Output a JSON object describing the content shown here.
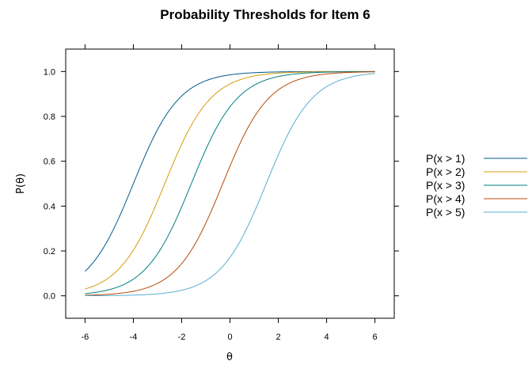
{
  "chart_data": {
    "type": "line",
    "title": "Probability Thresholds for Item 6",
    "xlabel": "θ",
    "ylabel": "P(θ)",
    "xlim": [
      -6.8,
      6.8
    ],
    "ylim": [
      -0.1,
      1.1
    ],
    "xticks": [
      -6,
      -4,
      -2,
      0,
      2,
      4,
      6
    ],
    "yticks": [
      0.0,
      0.2,
      0.4,
      0.6,
      0.8,
      1.0
    ],
    "xtick_labels": [
      "-6",
      "-4",
      "-2",
      "0",
      "2",
      "4",
      "6"
    ],
    "ytick_labels": [
      "0.0",
      "0.2",
      "0.4",
      "0.6",
      "0.8",
      "1.0"
    ],
    "grid": false,
    "legend_position": "right",
    "x_range": [
      -6,
      6
    ],
    "series": [
      {
        "name": "P(x > 1)",
        "color": "#005b8c",
        "threshold": -4.0,
        "slope": 1.05
      },
      {
        "name": "P(x > 2)",
        "color": "#d79c0c",
        "threshold": -2.7,
        "slope": 1.05
      },
      {
        "name": "P(x > 3)",
        "color": "#008080",
        "threshold": -1.6,
        "slope": 1.05
      },
      {
        "name": "P(x > 4)",
        "color": "#b84a0a",
        "threshold": -0.3,
        "slope": 1.05
      },
      {
        "name": "P(x > 5)",
        "color": "#5aaed0",
        "threshold": 1.5,
        "slope": 1.05
      }
    ]
  }
}
